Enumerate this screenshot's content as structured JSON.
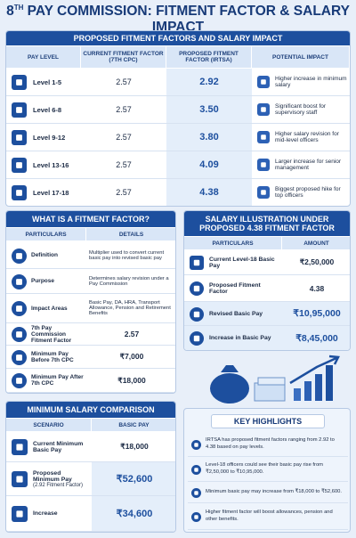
{
  "header": {
    "title_number": "8",
    "title_suffix": "TH",
    "title_rest": "PAY COMMISSION: FITMENT FACTOR & SALARY IMPACT"
  },
  "fitment_table": {
    "title": "PROPOSED FITMENT FACTORS AND SALARY IMPACT",
    "columns": [
      "PAY LEVEL",
      "CURRENT FITMENT FACTOR (7TH CPC)",
      "PROPOSED FITMENT FACTOR (IRTSA)",
      "POTENTIAL IMPACT"
    ],
    "rows": [
      {
        "level": "Level 1-5",
        "current": "2.57",
        "proposed": "2.92",
        "impact": "Higher increase in minimum salary"
      },
      {
        "level": "Level 6-8",
        "current": "2.57",
        "proposed": "3.50",
        "impact": "Significant boost for supervisory staff"
      },
      {
        "level": "Level 9-12",
        "current": "2.57",
        "proposed": "3.80",
        "impact": "Higher salary revision for mid-level officers"
      },
      {
        "level": "Level 13-16",
        "current": "2.57",
        "proposed": "4.09",
        "impact": "Larger increase for senior management"
      },
      {
        "level": "Level 17-18",
        "current": "2.57",
        "proposed": "4.38",
        "impact": "Biggest proposed hike for top officers"
      }
    ]
  },
  "definition_table": {
    "title": "WHAT IS A FITMENT FACTOR?",
    "columns": [
      "PARTICULARS",
      "DETAILS"
    ],
    "rows": [
      {
        "particular": "Definition",
        "detail": "Multiplier used to convert current basic pay into revised basic pay"
      },
      {
        "particular": "Purpose",
        "detail": "Determines salary revision under a Pay Commission"
      },
      {
        "particular": "Impact Areas",
        "detail": "Basic Pay, DA, HRA, Transport Allowance, Pension and Retirement Benefits"
      },
      {
        "particular": "7th Pay Commission Fitment Factor",
        "detail": "2.57"
      },
      {
        "particular": "Minimum Pay Before 7th CPC",
        "detail": "₹7,000"
      },
      {
        "particular": "Minimum Pay After 7th CPC",
        "detail": "₹18,000"
      }
    ]
  },
  "illustration_table": {
    "title": "SALARY ILLUSTRATION UNDER PROPOSED 4.38 FITMENT FACTOR",
    "columns": [
      "PARTICULARS",
      "AMOUNT"
    ],
    "rows": [
      {
        "particular": "Current Level-18 Basic Pay",
        "amount": "₹2,50,000"
      },
      {
        "particular": "Proposed Fitment Factor",
        "amount": "4.38"
      },
      {
        "particular": "Revised Basic Pay",
        "amount": "₹10,95,000"
      },
      {
        "particular": "Increase in Basic Pay",
        "amount": "₹8,45,000"
      }
    ]
  },
  "minimum_salary_table": {
    "title": "MINIMUM SALARY COMPARISON",
    "columns": [
      "SCENARIO",
      "BASIC PAY"
    ],
    "rows": [
      {
        "scenario": "Current Minimum Basic Pay",
        "pay": "₹18,000"
      },
      {
        "scenario": "Proposed Minimum Pay",
        "note": "(2.92 Fitment Factor)",
        "pay": "₹52,600"
      },
      {
        "scenario": "Increase",
        "pay": "₹34,600"
      }
    ]
  },
  "key_highlights": {
    "title": "KEY HIGHLIGHTS",
    "items": [
      "IRTSA has proposed fitment factors ranging from 2.92 to 4.38 based on pay levels.",
      "Level-18 officers could see their basic pay rise from ₹2,50,000 to ₹10,95,000.",
      "Minimum basic pay may increase from ₹18,000 to ₹52,600.",
      "Higher fitment factor will boost allowances, pension and other benefits."
    ]
  }
}
